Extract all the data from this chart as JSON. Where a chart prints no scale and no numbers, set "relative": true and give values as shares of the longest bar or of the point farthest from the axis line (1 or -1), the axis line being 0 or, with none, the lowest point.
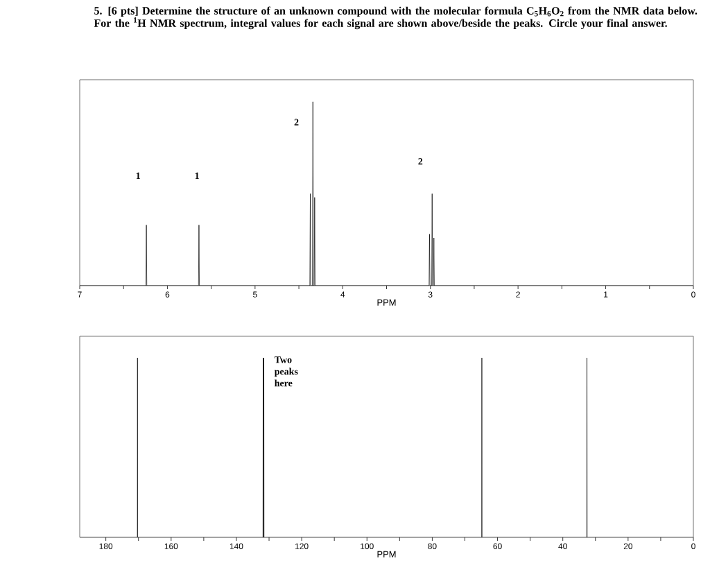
{
  "chart_data": [
    {
      "type": "line",
      "title": "5. [6 pts] Determine the structure of an unknown compound with the molecular formula C$_{5}$H$_{6}$O$_{2}$ from the NMR data below. For the $^{1}$H NMR spectrum, integral values for each signal are shown above/beside the peaks. Circle your final answer.",
      "xlabel": "PPM",
      "relative": true,
      "x": [
        7.0,
        6.245,
        6.24,
        6.235,
        5.645,
        5.64,
        5.635,
        4.375,
        4.37,
        4.365,
        4.345,
        4.34,
        4.335,
        4.325,
        4.32,
        4.315,
        3.015,
        3.01,
        3.005,
        2.985,
        2.98,
        2.975,
        2.965,
        2.96,
        2.955,
        0.0
      ],
      "series": [
        {
          "color": "#000000",
          "values": [
            0,
            0,
            0.33,
            0,
            0,
            0.33,
            0,
            0,
            0.5,
            0,
            0,
            1.0,
            0,
            0,
            0.48,
            0,
            0,
            0.28,
            0,
            0,
            0.5,
            0,
            0,
            0.26,
            0,
            0
          ]
        }
      ],
      "xlim": [
        7,
        0
      ],
      "xticks": [
        7,
        {
          "value": 6.5,
          "label": null
        },
        6,
        {
          "value": 5.5,
          "label": null
        },
        5,
        {
          "value": 4.5,
          "label": null
        },
        4,
        {
          "value": 3.5,
          "label": null
        },
        3,
        {
          "value": 2.5,
          "label": null
        },
        2,
        {
          "value": 1.5,
          "label": null
        },
        1,
        {
          "value": 0.5,
          "label": null
        },
        0
      ],
      "annotations": [
        "1",
        "1",
        "2",
        "2"
      ]
    },
    {
      "type": "line",
      "xlabel": "PPM",
      "relative": true,
      "x": [
        188,
        170.35,
        170.3,
        170.25,
        131.85,
        131.8,
        131.75,
        131.65,
        131.6,
        131.55,
        64.85,
        64.8,
        64.75,
        32.65,
        32.6,
        32.55,
        0
      ],
      "series": [
        {
          "color": "#000000",
          "values": [
            0,
            0,
            1,
            0,
            0,
            1,
            0,
            0,
            1,
            0,
            0,
            1,
            0,
            0,
            1,
            0,
            0
          ]
        }
      ],
      "xlim": [
        188,
        0
      ],
      "xticks": [
        180,
        {
          "value": 170,
          "label": null
        },
        160,
        {
          "value": 150,
          "label": null
        },
        140,
        {
          "value": 130,
          "label": null
        },
        120,
        {
          "value": 110,
          "label": null
        },
        100,
        {
          "value": 90,
          "label": null
        },
        80,
        {
          "value": 70,
          "label": null
        },
        60,
        {
          "value": 50,
          "label": null
        },
        40,
        {
          "value": 30,
          "label": null
        },
        20,
        {
          "value": 10,
          "label": null
        },
        0
      ],
      "annotations": [
        "Two peaks here"
      ]
    }
  ]
}
